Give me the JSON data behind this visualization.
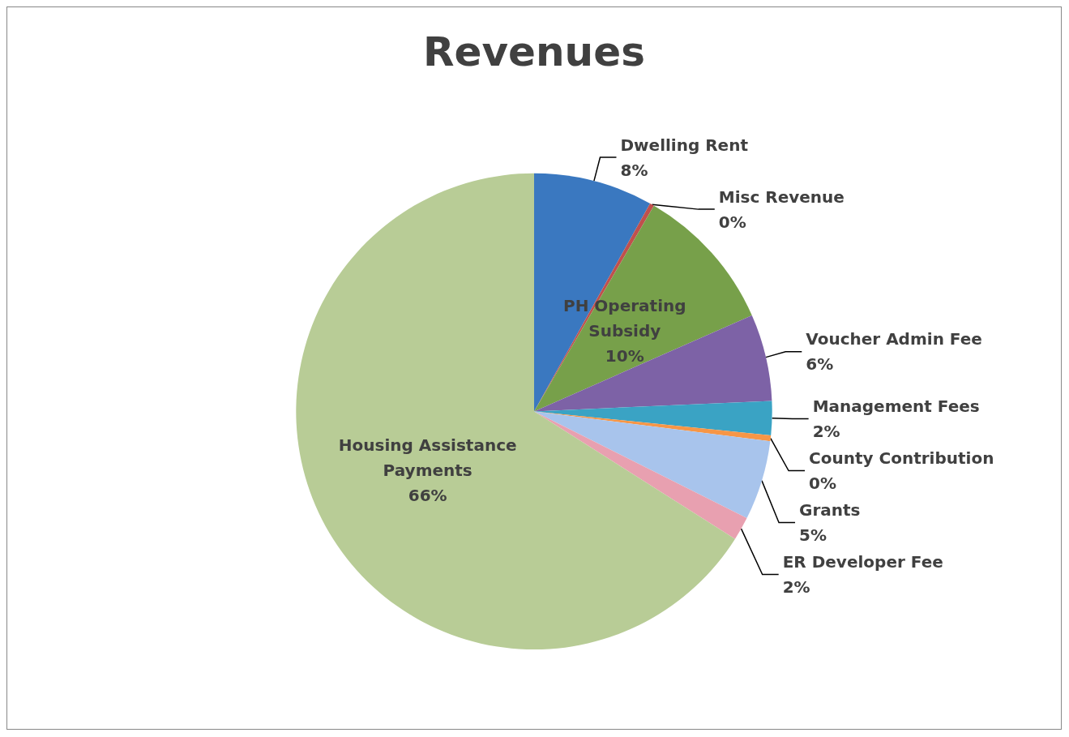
{
  "chart_data": {
    "type": "pie",
    "title": "Revenues",
    "categories": [
      "Dwelling Rent",
      "Misc Revenue",
      "PH Operating Subsidy",
      "Voucher Admin Fee",
      "Management Fees",
      "County Contribution",
      "Grants",
      "ER Developer Fee",
      "Housing Assistance Payments"
    ],
    "values": [
      8.1,
      0.3,
      10,
      5.9,
      2.3,
      0.4,
      5.4,
      1.6,
      66
    ],
    "value_labels": [
      "8%",
      "0%",
      "10%",
      "6%",
      "2%",
      "0%",
      "5%",
      "2%",
      "66%"
    ],
    "colors": [
      "#3a78c0",
      "#c0504d",
      "#77a04a",
      "#7d62a6",
      "#3aa3c4",
      "#f79646",
      "#a8c4ec",
      "#e8a0b0",
      "#b8cc96"
    ],
    "legend": false
  }
}
